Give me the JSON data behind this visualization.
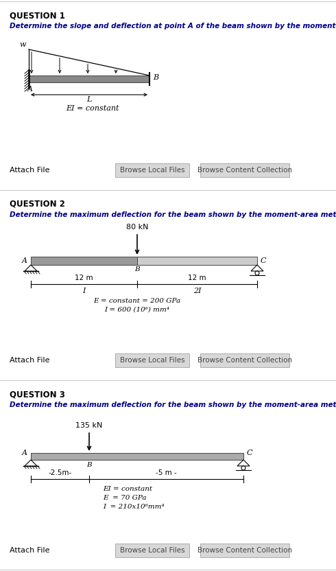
{
  "bg_color": "#ffffff",
  "border_color": "#cccccc",
  "q1_title": "QUESTION 1",
  "q1_body": "Determine the slope and deflection at point A of the beam shown by the moment-area method.",
  "q2_title": "QUESTION 2",
  "q2_body": "Determine the maximum deflection for the beam shown by the moment-area method.",
  "q3_title": "QUESTION 3",
  "q3_body": "Determine the maximum deflection for the beam shown by the moment-area method.",
  "attach_file": "Attach File",
  "browse_local": "Browse Local Files",
  "browse_content": "Browse Content Collection",
  "q1_ei": "EI = constant",
  "q1_L": "L",
  "q1_w": "w",
  "q1_B": "B",
  "q1_A": "A",
  "q2_load": "80 kN",
  "q2_A": "A",
  "q2_B": "B",
  "q2_C": "C",
  "q2_d1": "12 m",
  "q2_d2": "12 m",
  "q2_I": "I",
  "q2_2I": "2I",
  "q2_ei": "E = constant = 200 GPa",
  "q2_i": "I = 600 (10⁶) mm⁴",
  "q3_load": "135 kN",
  "q3_A": "A",
  "q3_B": "B",
  "q3_C": "C",
  "q3_d1": "-2.5m-",
  "q3_d2": "-5 m -",
  "q3_ei": "EI = constant",
  "q3_E": "E  = 70 GPa",
  "q3_I": "I  = 210x10⁶mm⁴",
  "button_color": "#d8d8d8",
  "button_text_color": "#444444"
}
